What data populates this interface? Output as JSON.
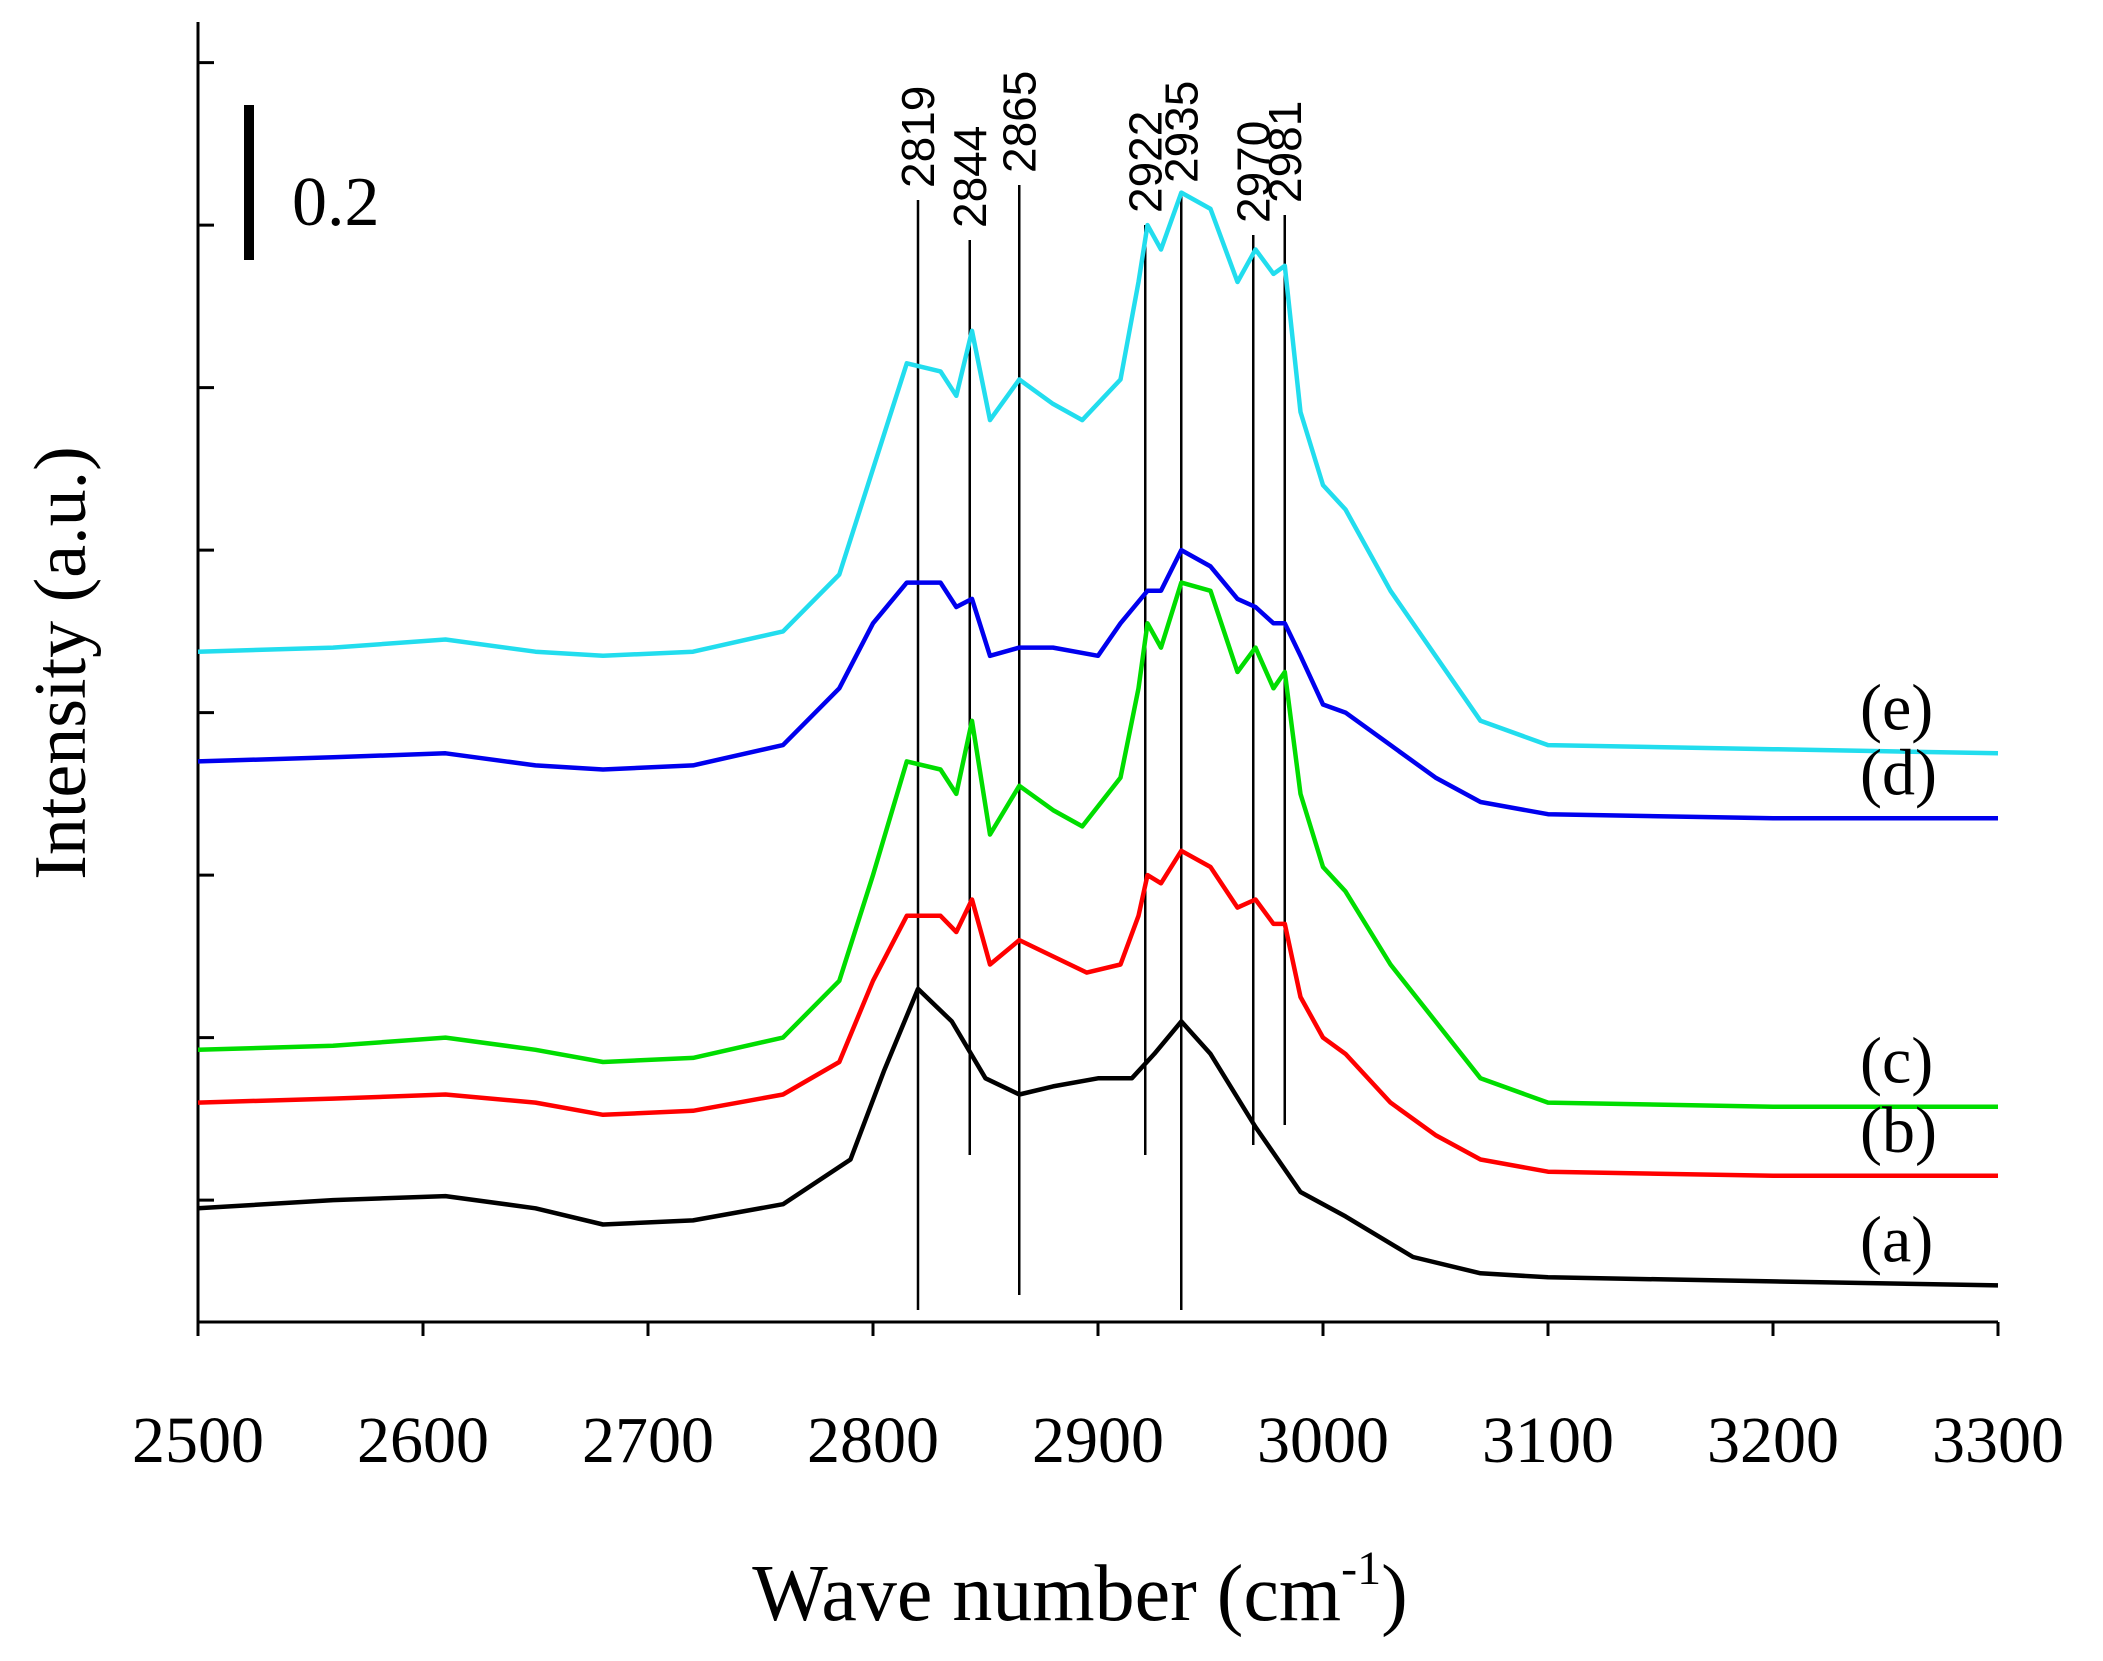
{
  "chart_data": {
    "type": "line",
    "title": "",
    "xlabel": "Wave number (cm",
    "xlabel_sup": "-1",
    "xlabel_close": ")",
    "ylabel": "Intensity (a.u.)",
    "xlim": [
      2500,
      3300
    ],
    "ylim": [
      0,
      1.6
    ],
    "x_ticks": [
      "2500",
      "2600",
      "2700",
      "2800",
      "2900",
      "3000",
      "3100",
      "3200",
      "3300"
    ],
    "y_ticks_shown": false,
    "scale_bar": {
      "label": "0.2",
      "value": 0.2
    },
    "peak_lines": [
      {
        "label": "2819",
        "x": 2820
      },
      {
        "label": "2844",
        "x": 2843
      },
      {
        "label": "2865",
        "x": 2865
      },
      {
        "label": "2922",
        "x": 2921
      },
      {
        "label": "2935",
        "x": 2937
      },
      {
        "label": "2970",
        "x": 2969
      },
      {
        "label": "2981",
        "x": 2983
      }
    ],
    "series": [
      {
        "name": "(a)",
        "color": "#000000",
        "points": [
          [
            2500,
            0.14
          ],
          [
            2560,
            0.15
          ],
          [
            2610,
            0.155
          ],
          [
            2650,
            0.14
          ],
          [
            2680,
            0.12
          ],
          [
            2720,
            0.125
          ],
          [
            2760,
            0.145
          ],
          [
            2790,
            0.2
          ],
          [
            2805,
            0.31
          ],
          [
            2820,
            0.41
          ],
          [
            2835,
            0.37
          ],
          [
            2850,
            0.3
          ],
          [
            2865,
            0.28
          ],
          [
            2880,
            0.29
          ],
          [
            2900,
            0.3
          ],
          [
            2915,
            0.3
          ],
          [
            2925,
            0.33
          ],
          [
            2937,
            0.37
          ],
          [
            2950,
            0.33
          ],
          [
            2970,
            0.24
          ],
          [
            2990,
            0.16
          ],
          [
            3010,
            0.13
          ],
          [
            3040,
            0.08
          ],
          [
            3070,
            0.06
          ],
          [
            3100,
            0.055
          ],
          [
            3200,
            0.05
          ],
          [
            3300,
            0.045
          ]
        ]
      },
      {
        "name": "(b)",
        "color": "#ff0000",
        "points": [
          [
            2500,
            0.27
          ],
          [
            2560,
            0.275
          ],
          [
            2610,
            0.28
          ],
          [
            2650,
            0.27
          ],
          [
            2680,
            0.255
          ],
          [
            2720,
            0.26
          ],
          [
            2760,
            0.28
          ],
          [
            2785,
            0.32
          ],
          [
            2800,
            0.42
          ],
          [
            2815,
            0.5
          ],
          [
            2830,
            0.5
          ],
          [
            2837,
            0.48
          ],
          [
            2844,
            0.52
          ],
          [
            2852,
            0.44
          ],
          [
            2865,
            0.47
          ],
          [
            2880,
            0.45
          ],
          [
            2895,
            0.43
          ],
          [
            2910,
            0.44
          ],
          [
            2918,
            0.5
          ],
          [
            2922,
            0.55
          ],
          [
            2928,
            0.54
          ],
          [
            2937,
            0.58
          ],
          [
            2950,
            0.56
          ],
          [
            2962,
            0.51
          ],
          [
            2970,
            0.52
          ],
          [
            2978,
            0.49
          ],
          [
            2983,
            0.49
          ],
          [
            2990,
            0.4
          ],
          [
            3000,
            0.35
          ],
          [
            3010,
            0.33
          ],
          [
            3030,
            0.27
          ],
          [
            3050,
            0.23
          ],
          [
            3070,
            0.2
          ],
          [
            3100,
            0.185
          ],
          [
            3200,
            0.18
          ],
          [
            3300,
            0.18
          ]
        ]
      },
      {
        "name": "(c)",
        "color": "#00dd00",
        "points": [
          [
            2500,
            0.335
          ],
          [
            2560,
            0.34
          ],
          [
            2610,
            0.35
          ],
          [
            2650,
            0.335
          ],
          [
            2680,
            0.32
          ],
          [
            2720,
            0.325
          ],
          [
            2760,
            0.35
          ],
          [
            2785,
            0.42
          ],
          [
            2800,
            0.55
          ],
          [
            2815,
            0.69
          ],
          [
            2830,
            0.68
          ],
          [
            2837,
            0.65
          ],
          [
            2844,
            0.74
          ],
          [
            2852,
            0.6
          ],
          [
            2865,
            0.66
          ],
          [
            2880,
            0.63
          ],
          [
            2893,
            0.61
          ],
          [
            2910,
            0.67
          ],
          [
            2918,
            0.78
          ],
          [
            2922,
            0.86
          ],
          [
            2928,
            0.83
          ],
          [
            2937,
            0.91
          ],
          [
            2950,
            0.9
          ],
          [
            2962,
            0.8
          ],
          [
            2970,
            0.83
          ],
          [
            2978,
            0.78
          ],
          [
            2983,
            0.8
          ],
          [
            2990,
            0.65
          ],
          [
            3000,
            0.56
          ],
          [
            3010,
            0.53
          ],
          [
            3030,
            0.44
          ],
          [
            3050,
            0.37
          ],
          [
            3070,
            0.3
          ],
          [
            3100,
            0.27
          ],
          [
            3200,
            0.265
          ],
          [
            3300,
            0.265
          ]
        ]
      },
      {
        "name": "(d)",
        "color": "#0000ee",
        "points": [
          [
            2500,
            0.69
          ],
          [
            2560,
            0.695
          ],
          [
            2610,
            0.7
          ],
          [
            2650,
            0.685
          ],
          [
            2680,
            0.68
          ],
          [
            2720,
            0.685
          ],
          [
            2760,
            0.71
          ],
          [
            2785,
            0.78
          ],
          [
            2800,
            0.86
          ],
          [
            2815,
            0.91
          ],
          [
            2830,
            0.91
          ],
          [
            2837,
            0.88
          ],
          [
            2844,
            0.89
          ],
          [
            2852,
            0.82
          ],
          [
            2865,
            0.83
          ],
          [
            2880,
            0.83
          ],
          [
            2900,
            0.82
          ],
          [
            2910,
            0.86
          ],
          [
            2922,
            0.9
          ],
          [
            2928,
            0.9
          ],
          [
            2937,
            0.95
          ],
          [
            2950,
            0.93
          ],
          [
            2962,
            0.89
          ],
          [
            2970,
            0.88
          ],
          [
            2978,
            0.86
          ],
          [
            2983,
            0.86
          ],
          [
            2990,
            0.82
          ],
          [
            3000,
            0.76
          ],
          [
            3010,
            0.75
          ],
          [
            3030,
            0.71
          ],
          [
            3050,
            0.67
          ],
          [
            3070,
            0.64
          ],
          [
            3100,
            0.625
          ],
          [
            3200,
            0.62
          ],
          [
            3300,
            0.62
          ]
        ]
      },
      {
        "name": "(e)",
        "color": "#22ddee",
        "points": [
          [
            2500,
            0.825
          ],
          [
            2560,
            0.83
          ],
          [
            2610,
            0.84
          ],
          [
            2650,
            0.825
          ],
          [
            2680,
            0.82
          ],
          [
            2720,
            0.825
          ],
          [
            2760,
            0.85
          ],
          [
            2785,
            0.92
          ],
          [
            2800,
            1.05
          ],
          [
            2815,
            1.18
          ],
          [
            2830,
            1.17
          ],
          [
            2837,
            1.14
          ],
          [
            2844,
            1.22
          ],
          [
            2852,
            1.11
          ],
          [
            2865,
            1.16
          ],
          [
            2880,
            1.13
          ],
          [
            2893,
            1.11
          ],
          [
            2910,
            1.16
          ],
          [
            2918,
            1.28
          ],
          [
            2922,
            1.35
          ],
          [
            2928,
            1.32
          ],
          [
            2937,
            1.39
          ],
          [
            2950,
            1.37
          ],
          [
            2962,
            1.28
          ],
          [
            2970,
            1.32
          ],
          [
            2978,
            1.29
          ],
          [
            2983,
            1.3
          ],
          [
            2990,
            1.12
          ],
          [
            3000,
            1.03
          ],
          [
            3010,
            1.0
          ],
          [
            3030,
            0.9
          ],
          [
            3050,
            0.82
          ],
          [
            3070,
            0.74
          ],
          [
            3100,
            0.71
          ],
          [
            3200,
            0.705
          ],
          [
            3300,
            0.7
          ]
        ]
      }
    ]
  }
}
